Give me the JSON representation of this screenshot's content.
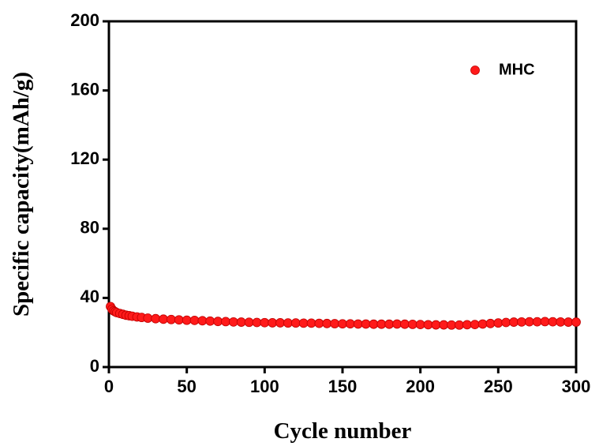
{
  "chart_data": {
    "type": "scatter",
    "xlabel": "Cycle number",
    "ylabel": "Specific capacity(mAh/g)",
    "xlim": [
      0,
      300
    ],
    "xticks": [
      0,
      50,
      100,
      150,
      200,
      250,
      300
    ],
    "ylim": [
      0,
      200
    ],
    "yticks": [
      0,
      40,
      80,
      120,
      160,
      200
    ],
    "legend": "upper right",
    "series": [
      {
        "name": "MHC",
        "color": "#ff1a1a",
        "x": [
          1,
          2,
          3,
          4,
          5,
          7,
          9,
          11,
          13,
          15,
          18,
          21,
          25,
          30,
          35,
          40,
          45,
          50,
          55,
          60,
          65,
          70,
          75,
          80,
          85,
          90,
          95,
          100,
          105,
          110,
          115,
          120,
          125,
          130,
          135,
          140,
          145,
          150,
          155,
          160,
          165,
          170,
          175,
          180,
          185,
          190,
          195,
          200,
          205,
          210,
          215,
          220,
          225,
          230,
          235,
          240,
          245,
          250,
          255,
          260,
          265,
          270,
          275,
          280,
          285,
          290,
          295,
          300
        ],
        "values": [
          35,
          33.5,
          32.5,
          32,
          31.5,
          31,
          30.5,
          30,
          29.7,
          29.4,
          29,
          28.7,
          28.3,
          28,
          27.7,
          27.5,
          27.3,
          27.1,
          27,
          26.8,
          26.6,
          26.4,
          26.3,
          26.1,
          26,
          25.9,
          25.8,
          25.7,
          25.6,
          25.6,
          25.5,
          25.5,
          25.4,
          25.4,
          25.3,
          25.2,
          25.1,
          25,
          25,
          24.9,
          24.9,
          24.8,
          24.8,
          24.8,
          24.9,
          24.8,
          24.7,
          24.6,
          24.5,
          24.4,
          24.4,
          24.3,
          24.3,
          24.5,
          24.6,
          24.9,
          25.2,
          25.5,
          25.8,
          26,
          26.1,
          26.2,
          26.2,
          26.3,
          26.2,
          26.1,
          26,
          26
        ]
      }
    ]
  }
}
